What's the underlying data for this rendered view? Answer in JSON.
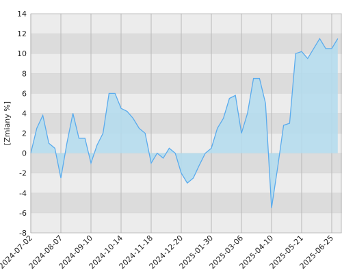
{
  "chart_data": {
    "type": "area",
    "y_label": "[Zmiany %]",
    "categories": [
      "2024-07-02",
      null,
      null,
      null,
      null,
      "2024-08-07",
      null,
      null,
      null,
      null,
      "2024-09-10",
      null,
      null,
      null,
      null,
      "2024-10-14",
      null,
      null,
      null,
      null,
      "2024-11-18",
      null,
      null,
      null,
      null,
      "2024-12-20",
      null,
      null,
      null,
      null,
      "2025-01-30",
      null,
      null,
      null,
      null,
      "2025-03-06",
      null,
      null,
      null,
      null,
      "2025-04-10",
      null,
      null,
      null,
      null,
      "2025-05-21",
      null,
      null,
      null,
      null,
      "2025-06-25",
      null
    ],
    "values": [
      0,
      2.5,
      3.8,
      1,
      0.5,
      -2.5,
      1,
      4,
      1.5,
      1.5,
      -1,
      0.8,
      2,
      6,
      6,
      4.5,
      4.2,
      3.5,
      2.5,
      2,
      -1,
      0,
      -0.5,
      0.5,
      0,
      -2,
      -3,
      -2.5,
      -1.2,
      0,
      0.5,
      2.5,
      3.5,
      5.5,
      5.8,
      2,
      4,
      7.5,
      7.5,
      5,
      -5.5,
      -1.5,
      2.8,
      3,
      10,
      10.2,
      9.5,
      10.5,
      11.5,
      10.5,
      10.5,
      11.5
    ],
    "color": "#5aabed",
    "fill_color": "#b3dcee",
    "ylim": [
      -8,
      14
    ],
    "yticks": [
      -8,
      -6,
      -4,
      -2,
      0,
      2,
      4,
      6,
      8,
      10,
      12,
      14
    ],
    "grid": true
  }
}
